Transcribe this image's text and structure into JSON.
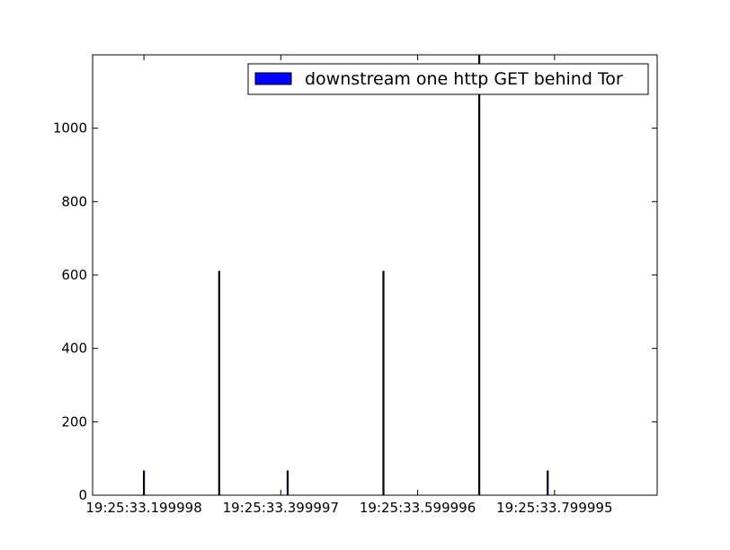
{
  "chart_data": {
    "type": "bar",
    "title": "",
    "xlabel": "",
    "ylabel": "",
    "xlim": [
      33.125,
      33.95
    ],
    "ylim": [
      0,
      1200
    ],
    "x_tick_values": [
      33.199998,
      33.399997,
      33.599996,
      33.799995
    ],
    "x_tick_labels": [
      "19:25:33.199998",
      "19:25:33.399997",
      "19:25:33.599996",
      "19:25:33.799995"
    ],
    "y_tick_values": [
      0,
      200,
      400,
      600,
      800,
      1000
    ],
    "y_tick_labels": [
      "0",
      "200",
      "400",
      "600",
      "800",
      "1000"
    ],
    "grid": false,
    "legend_position": "upper-right",
    "series": [
      {
        "name": "downstream one http GET behind Tor",
        "color": "#0000ff",
        "x": [
          33.2,
          33.31,
          33.41,
          33.55,
          33.69,
          33.79
        ],
        "values": [
          66,
          610,
          66,
          610,
          1200,
          66
        ]
      }
    ]
  }
}
